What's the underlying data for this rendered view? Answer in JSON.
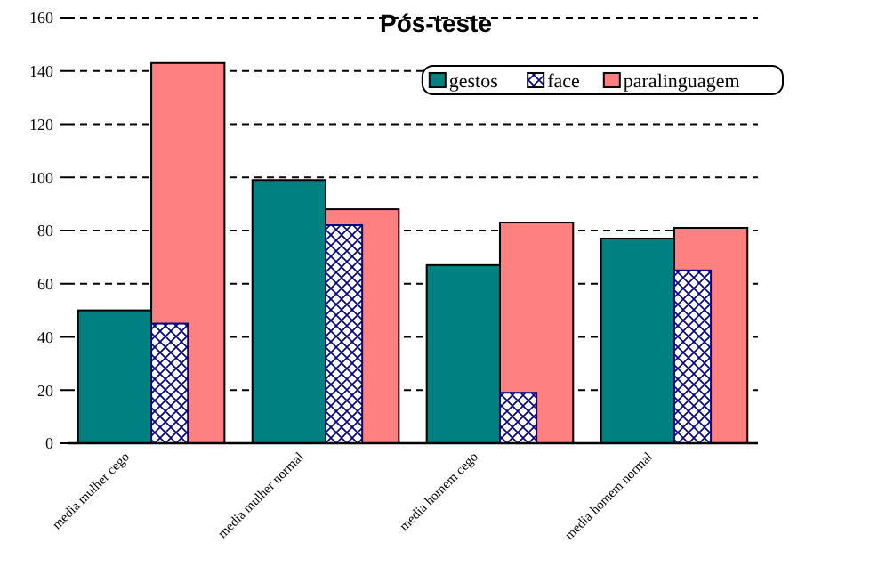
{
  "chart_data": {
    "type": "bar",
    "title": "Pós-teste",
    "categories": [
      "media mulher cego",
      "media mulher normal",
      "media homem cego",
      "media homem normal"
    ],
    "series": [
      {
        "name": "gestos",
        "color": "#008080",
        "values": [
          50,
          99,
          67,
          77
        ]
      },
      {
        "name": "face",
        "color": "#000080",
        "values": [
          45,
          82,
          19,
          65
        ]
      },
      {
        "name": "paralinguagem",
        "color": "#ff8080",
        "values": [
          143,
          88,
          83,
          81
        ]
      }
    ],
    "ylim": [
      0,
      160
    ],
    "yticks": [
      0,
      20,
      40,
      60,
      80,
      100,
      120,
      140,
      160
    ],
    "grid": "y",
    "legend": "top right"
  }
}
